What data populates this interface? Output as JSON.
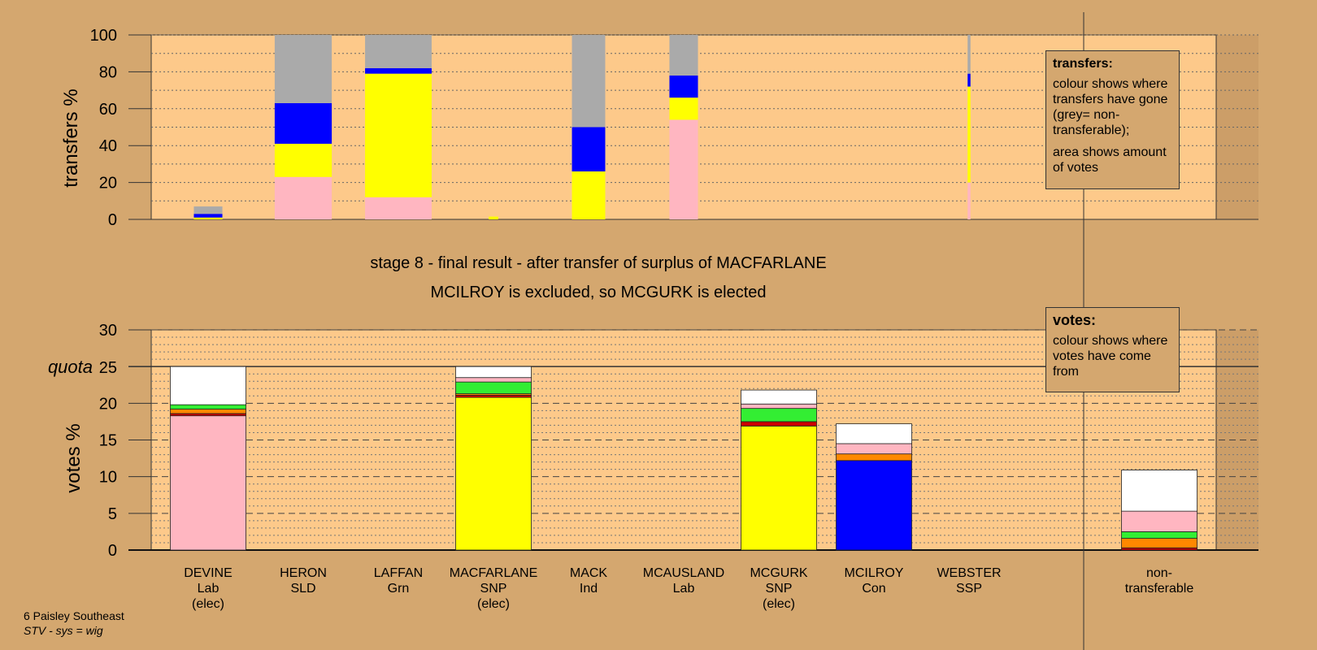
{
  "chart_data": {
    "type": "bar",
    "stage_text": "stage 8 - final result - after transfer of surplus of MACFARLANE",
    "result_text": "MCILROY is excluded, so MCGURK is elected",
    "colors": {
      "grey": "#aaaaaa",
      "blue": "#0000ff",
      "yellow": "#ffff00",
      "pink": "#ffb6c1",
      "green": "#33ee33",
      "orange": "#ff8800",
      "red": "#cc0000",
      "white": "#ffffff"
    },
    "candidates": [
      {
        "name": "DEVINE",
        "party": "Lab",
        "status": "(elec)"
      },
      {
        "name": "HERON",
        "party": "SLD",
        "status": ""
      },
      {
        "name": "LAFFAN",
        "party": "Grn",
        "status": ""
      },
      {
        "name": "MACFARLANE",
        "party": "SNP",
        "status": "(elec)"
      },
      {
        "name": "MACK",
        "party": "Ind",
        "status": ""
      },
      {
        "name": "MCAUSLAND",
        "party": "Lab",
        "status": ""
      },
      {
        "name": "MCGURK",
        "party": "SNP",
        "status": "(elec)"
      },
      {
        "name": "MCILROY",
        "party": "Con",
        "status": ""
      },
      {
        "name": "WEBSTER",
        "party": "SSP",
        "status": ""
      }
    ],
    "nontransferable_label": [
      "non-",
      "transferable"
    ],
    "transfers": {
      "ylabel": "transfers %",
      "ylim": [
        0,
        100
      ],
      "yticks": [
        0,
        20,
        40,
        60,
        80,
        100
      ],
      "bars": [
        {
          "candidate": "DEVINE",
          "width": 0.3,
          "segments": [
            {
              "color": "yellow",
              "value": 1
            },
            {
              "color": "blue",
              "value": 2
            },
            {
              "color": "grey",
              "value": 4
            }
          ]
        },
        {
          "candidate": "HERON",
          "width": 0.6,
          "segments": [
            {
              "color": "pink",
              "value": 23
            },
            {
              "color": "yellow",
              "value": 18
            },
            {
              "color": "blue",
              "value": 22
            },
            {
              "color": "grey",
              "value": 37
            }
          ]
        },
        {
          "candidate": "LAFFAN",
          "width": 0.7,
          "segments": [
            {
              "color": "pink",
              "value": 12
            },
            {
              "color": "yellow",
              "value": 67
            },
            {
              "color": "blue",
              "value": 3
            },
            {
              "color": "grey",
              "value": 18
            }
          ]
        },
        {
          "candidate": "MACFARLANE",
          "width": 0.1,
          "segments": [
            {
              "color": "yellow",
              "value": 1.5
            }
          ]
        },
        {
          "candidate": "MACK",
          "width": 0.35,
          "segments": [
            {
              "color": "yellow",
              "value": 26
            },
            {
              "color": "blue",
              "value": 24
            },
            {
              "color": "grey",
              "value": 50
            }
          ]
        },
        {
          "candidate": "MCAUSLAND",
          "width": 0.3,
          "segments": [
            {
              "color": "pink",
              "value": 54
            },
            {
              "color": "yellow",
              "value": 12
            },
            {
              "color": "blue",
              "value": 12
            },
            {
              "color": "grey",
              "value": 22
            }
          ]
        },
        {
          "candidate": "WEBSTER",
          "width": 0.03,
          "segments": [
            {
              "color": "pink",
              "value": 20
            },
            {
              "color": "yellow",
              "value": 52
            },
            {
              "color": "blue",
              "value": 7
            },
            {
              "color": "grey",
              "value": 21
            }
          ]
        }
      ]
    },
    "votes": {
      "ylabel": "votes %",
      "ylim": [
        0,
        30
      ],
      "yticks": [
        0,
        5,
        10,
        15,
        20,
        25,
        30
      ],
      "quota": 25,
      "quota_label": "quota",
      "bars": [
        {
          "candidate": "DEVINE",
          "segments": [
            {
              "color": "pink",
              "value": 18.3
            },
            {
              "color": "red",
              "value": 0.3
            },
            {
              "color": "orange",
              "value": 0.6
            },
            {
              "color": "green",
              "value": 0.6
            },
            {
              "color": "white",
              "value": 5.2
            }
          ]
        },
        {
          "candidate": "MACFARLANE",
          "segments": [
            {
              "color": "yellow",
              "value": 20.8
            },
            {
              "color": "red",
              "value": 0.3
            },
            {
              "color": "orange",
              "value": 0.2
            },
            {
              "color": "green",
              "value": 1.6
            },
            {
              "color": "pink",
              "value": 0.6
            },
            {
              "color": "white",
              "value": 1.5
            }
          ]
        },
        {
          "candidate": "MCGURK",
          "segments": [
            {
              "color": "yellow",
              "value": 16.9
            },
            {
              "color": "red",
              "value": 0.6
            },
            {
              "color": "green",
              "value": 1.8
            },
            {
              "color": "pink",
              "value": 0.6
            },
            {
              "color": "white",
              "value": 1.9
            }
          ]
        },
        {
          "candidate": "MCILROY",
          "segments": [
            {
              "color": "blue",
              "value": 12.2
            },
            {
              "color": "orange",
              "value": 0.9
            },
            {
              "color": "pink",
              "value": 1.4
            },
            {
              "color": "white",
              "value": 2.7
            }
          ]
        },
        {
          "candidate": "non-transferable",
          "segments": [
            {
              "color": "red",
              "value": 0.3
            },
            {
              "color": "orange",
              "value": 1.3
            },
            {
              "color": "green",
              "value": 0.9
            },
            {
              "color": "pink",
              "value": 2.8
            },
            {
              "color": "white",
              "value": 5.6
            }
          ]
        }
      ]
    }
  },
  "legend_transfers": {
    "title": "transfers:",
    "line1": "colour shows where transfers have gone (grey= non-transferable);",
    "line2": "area shows amount of votes"
  },
  "legend_votes": {
    "title": "votes:",
    "line1": "colour shows where votes have come from"
  },
  "footer": {
    "constituency": "6 Paisley Southeast",
    "system": "STV - sys = wig"
  }
}
